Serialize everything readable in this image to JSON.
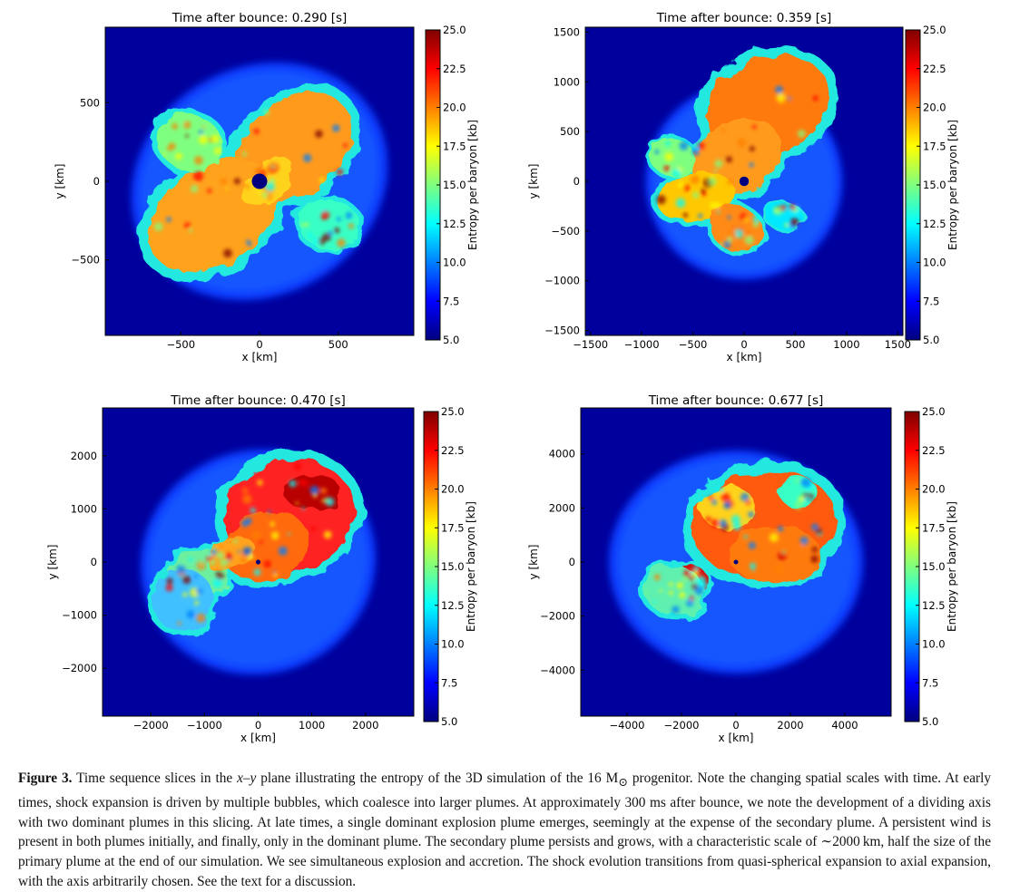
{
  "figure": {
    "panels": [
      {
        "id": "p1",
        "title": "Time after bounce: 0.290 [s]",
        "chart_data": {
          "type": "heatmap",
          "title": "Time after bounce: 0.290 [s]",
          "xlabel": "x [km]",
          "ylabel": "y [km]",
          "xlim": [
            -980,
            980
          ],
          "ylim": [
            -980,
            980
          ],
          "xticks": [
            -500,
            0,
            500
          ],
          "xtick_labels": [
            "−500",
            "0",
            "500"
          ],
          "yticks": [
            -500,
            0,
            500
          ],
          "ytick_labels": [
            "−500",
            "0",
            "500"
          ],
          "colorbar": {
            "label": "Entropy per baryon [kb]",
            "min": 5.0,
            "max": 25.0,
            "ticks": [
              5.0,
              7.5,
              10.0,
              12.5,
              15.0,
              17.5,
              20.0,
              22.5,
              25.0
            ],
            "tick_labels": [
              "5.0",
              "7.5",
              "10.0",
              "12.5",
              "15.0",
              "17.5",
              "20.0",
              "22.5",
              "25.0"
            ]
          }
        }
      },
      {
        "id": "p2",
        "title": "Time after bounce: 0.359 [s]",
        "chart_data": {
          "type": "heatmap",
          "title": "Time after bounce: 0.359 [s]",
          "xlabel": "x [km]",
          "ylabel": "y [km]",
          "xlim": [
            -1550,
            1550
          ],
          "ylim": [
            -1550,
            1550
          ],
          "xticks": [
            -1500,
            -1000,
            -500,
            0,
            500,
            1000,
            1500
          ],
          "xtick_labels": [
            "−1500",
            "−1000",
            "−500",
            "0",
            "500",
            "1000",
            "1500"
          ],
          "yticks": [
            -1500,
            -1000,
            -500,
            0,
            500,
            1000,
            1500
          ],
          "ytick_labels": [
            "−1500",
            "−1000",
            "−500",
            "0",
            "500",
            "1000",
            "1500"
          ],
          "colorbar": {
            "label": "Entropy per baryon [kb]",
            "min": 5.0,
            "max": 25.0,
            "ticks": [
              5.0,
              7.5,
              10.0,
              12.5,
              15.0,
              17.5,
              20.0,
              22.5,
              25.0
            ],
            "tick_labels": [
              "5.0",
              "7.5",
              "10.0",
              "12.5",
              "15.0",
              "17.5",
              "20.0",
              "22.5",
              "25.0"
            ]
          }
        }
      },
      {
        "id": "p3",
        "title": "Time after bounce: 0.470 [s]",
        "chart_data": {
          "type": "heatmap",
          "title": "Time after bounce: 0.470 [s]",
          "xlabel": "x [km]",
          "ylabel": "y [km]",
          "xlim": [
            -2900,
            2900
          ],
          "ylim": [
            -2900,
            2900
          ],
          "xticks": [
            -2000,
            -1000,
            0,
            1000,
            2000
          ],
          "xtick_labels": [
            "−2000",
            "−1000",
            "0",
            "1000",
            "2000"
          ],
          "yticks": [
            -2000,
            -1000,
            0,
            1000,
            2000
          ],
          "ytick_labels": [
            "−2000",
            "−1000",
            "0",
            "1000",
            "2000"
          ],
          "colorbar": {
            "label": "Entropy per baryon [kb]",
            "min": 5.0,
            "max": 25.0,
            "ticks": [
              5.0,
              7.5,
              10.0,
              12.5,
              15.0,
              17.5,
              20.0,
              22.5,
              25.0
            ],
            "tick_labels": [
              "5.0",
              "7.5",
              "10.0",
              "12.5",
              "15.0",
              "17.5",
              "20.0",
              "22.5",
              "25.0"
            ]
          }
        }
      },
      {
        "id": "p4",
        "title": "Time after bounce: 0.677 [s]",
        "chart_data": {
          "type": "heatmap",
          "title": "Time after bounce: 0.677 [s]",
          "xlabel": "x [km]",
          "ylabel": "y [km]",
          "xlim": [
            -5700,
            5700
          ],
          "ylim": [
            -5700,
            5700
          ],
          "xticks": [
            -4000,
            -2000,
            0,
            2000,
            4000
          ],
          "xtick_labels": [
            "−4000",
            "−2000",
            "0",
            "2000",
            "4000"
          ],
          "yticks": [
            -4000,
            -2000,
            0,
            2000,
            4000
          ],
          "ytick_labels": [
            "−4000",
            "−2000",
            "0",
            "2000",
            "4000"
          ],
          "colorbar": {
            "label": "Entropy per baryon [kb]",
            "min": 5.0,
            "max": 25.0,
            "ticks": [
              5.0,
              7.5,
              10.0,
              12.5,
              15.0,
              17.5,
              20.0,
              22.5,
              25.0
            ],
            "tick_labels": [
              "5.0",
              "7.5",
              "10.0",
              "12.5",
              "15.0",
              "17.5",
              "20.0",
              "22.5",
              "25.0"
            ]
          }
        }
      }
    ]
  },
  "colors": {
    "background_blue": "#00009c",
    "halo_blue": "#0a3cff",
    "colormap": [
      "#00007f",
      "#0000ff",
      "#007fff",
      "#00ffff",
      "#7fff7f",
      "#ffff00",
      "#ff7f00",
      "#ff0000",
      "#7f0000"
    ]
  },
  "caption": {
    "label": "Figure 3.",
    "text_before": "Time sequence slices in the ",
    "plane": "x–y",
    "text_mid": " plane illustrating the entropy of the 3D simulation of the 16 M",
    "sun_symbol": "⊙",
    "text_after": " progenitor. Note the changing spatial scales with time. At early times, shock expansion is driven by multiple bubbles, which coalesce into larger plumes. At approximately 300 ms after bounce, we note the development of a dividing axis with two dominant plumes in this slicing. At late times, a single dominant explosion plume emerges, seemingly at the expense of the secondary plume. A persistent wind is present in both plumes initially, and finally, only in the dominant plume. The secondary plume persists and grows, with a characteristic scale of ∼2000 km, half the size of the primary plume at the end of our simulation. We see simultaneous explosion and accretion. The shock evolution transitions from quasi-spherical expansion to axial expansion, with the axis arbitrarily chosen. See the text for a discussion."
  }
}
